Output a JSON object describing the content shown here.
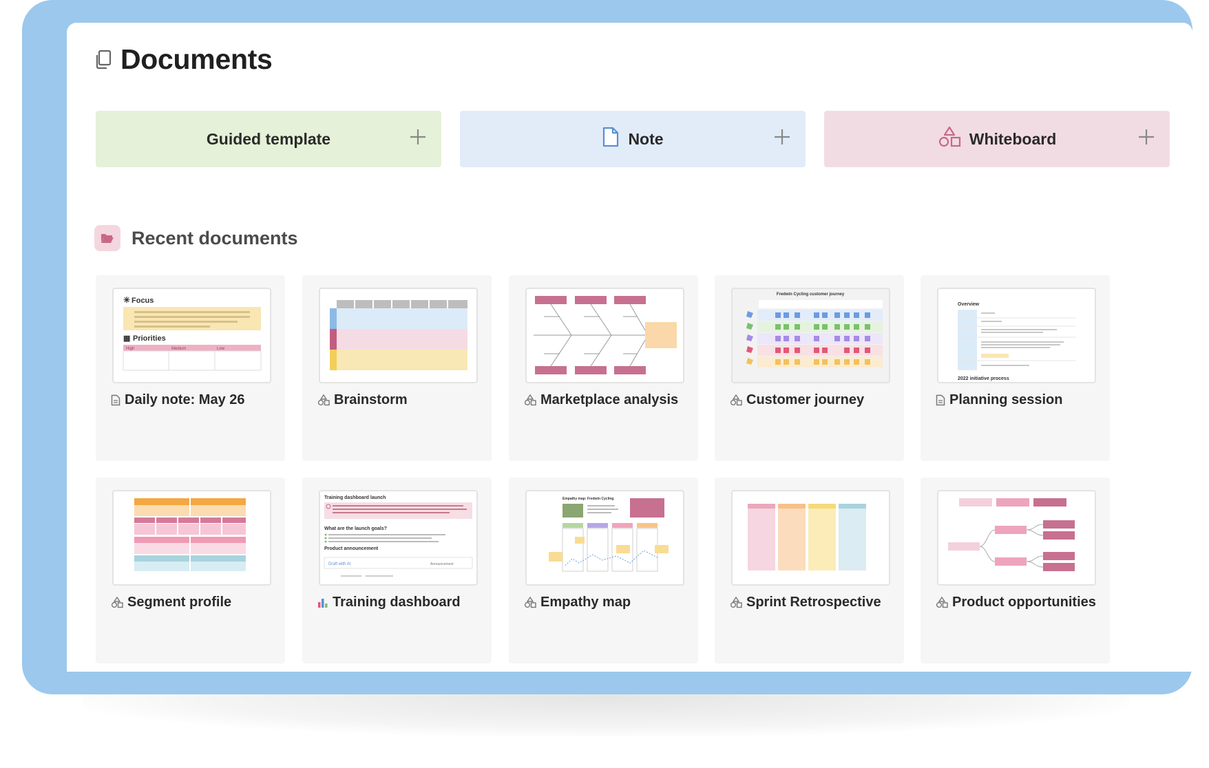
{
  "page": {
    "title": "Documents",
    "title_icon": "documents-icon"
  },
  "create": [
    {
      "label": "Guided template",
      "icon": "",
      "color": "#e5f1d8"
    },
    {
      "label": "Note",
      "icon": "note-icon",
      "color": "#e1ecf8"
    },
    {
      "label": "Whiteboard",
      "icon": "whiteboard-icon",
      "color": "#f2dce3"
    }
  ],
  "recent": {
    "title": "Recent documents",
    "icon": "folder-open-icon",
    "items": [
      {
        "label": "Daily note: May 26",
        "type": "note-icon",
        "thumb": {
          "focus": "Focus",
          "priorities": "Priorities",
          "col_high": "High",
          "col_medium": "Medium",
          "col_low": "Low"
        }
      },
      {
        "label": "Brainstorm",
        "type": "whiteboard-icon"
      },
      {
        "label": "Marketplace analysis",
        "type": "whiteboard-icon"
      },
      {
        "label": "Customer journey",
        "type": "whiteboard-icon",
        "thumb": {
          "title": "Fredwin Cycling customer journey"
        }
      },
      {
        "label": "Planning session",
        "type": "note-icon",
        "thumb": {
          "heading": "Overview",
          "footer": "2022 initiative process"
        }
      },
      {
        "label": "Segment profile",
        "type": "whiteboard-icon"
      },
      {
        "label": "Training dashboard",
        "type": "chart-icon",
        "thumb": {
          "title": "Training dashboard launch",
          "q1": "What are the launch goals?",
          "q2": "Product announcement",
          "ai": "Draft with AI",
          "tag": "Announcement"
        }
      },
      {
        "label": "Empathy map",
        "type": "whiteboard-icon",
        "thumb": {
          "title": "Empathy map: Fredwin Cycling"
        }
      },
      {
        "label": "Sprint Retrospective",
        "type": "whiteboard-icon"
      },
      {
        "label": "Product opportunities",
        "type": "whiteboard-icon"
      }
    ]
  },
  "colors": {
    "frame": "#9bc8ec",
    "guided": "#e5f1d8",
    "note": "#e1ecf8",
    "whiteboard": "#f2dce3",
    "accent_pink": "#c9678a"
  }
}
